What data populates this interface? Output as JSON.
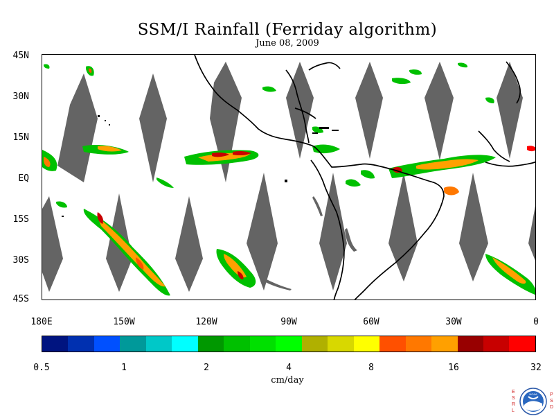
{
  "title": "SSM/I Rainfall (Ferriday algorithm)",
  "date": "June 08, 2009",
  "latitude_labels": [
    "45N",
    "30N",
    "15N",
    "EQ",
    "15S",
    "30S",
    "45S"
  ],
  "longitude_labels": [
    "180E",
    "150W",
    "120W",
    "90W",
    "60W",
    "30W",
    "0"
  ],
  "colorbar": {
    "colors": [
      "#001480",
      "#0030b0",
      "#0050ff",
      "#00999a",
      "#00c8c8",
      "#00ffff",
      "#009800",
      "#00c000",
      "#00e000",
      "#00ff00",
      "#b0b000",
      "#d8d800",
      "#ffff00",
      "#ff5000",
      "#ff7800",
      "#ffa000",
      "#980000",
      "#c80000",
      "#ff0000"
    ],
    "labels": [
      "0.5",
      "1",
      "2",
      "4",
      "8",
      "16",
      "32"
    ],
    "units": "cm/day"
  },
  "logo": {
    "left_letters": "ESRL",
    "right_letters": "PSD",
    "center": "NOAA"
  },
  "colors": {
    "swath_gap": "#646464",
    "coast": "#000000"
  },
  "map_extent": {
    "lon_min": -180,
    "lon_max": 0,
    "lat_min": -45,
    "lat_max": 45
  }
}
